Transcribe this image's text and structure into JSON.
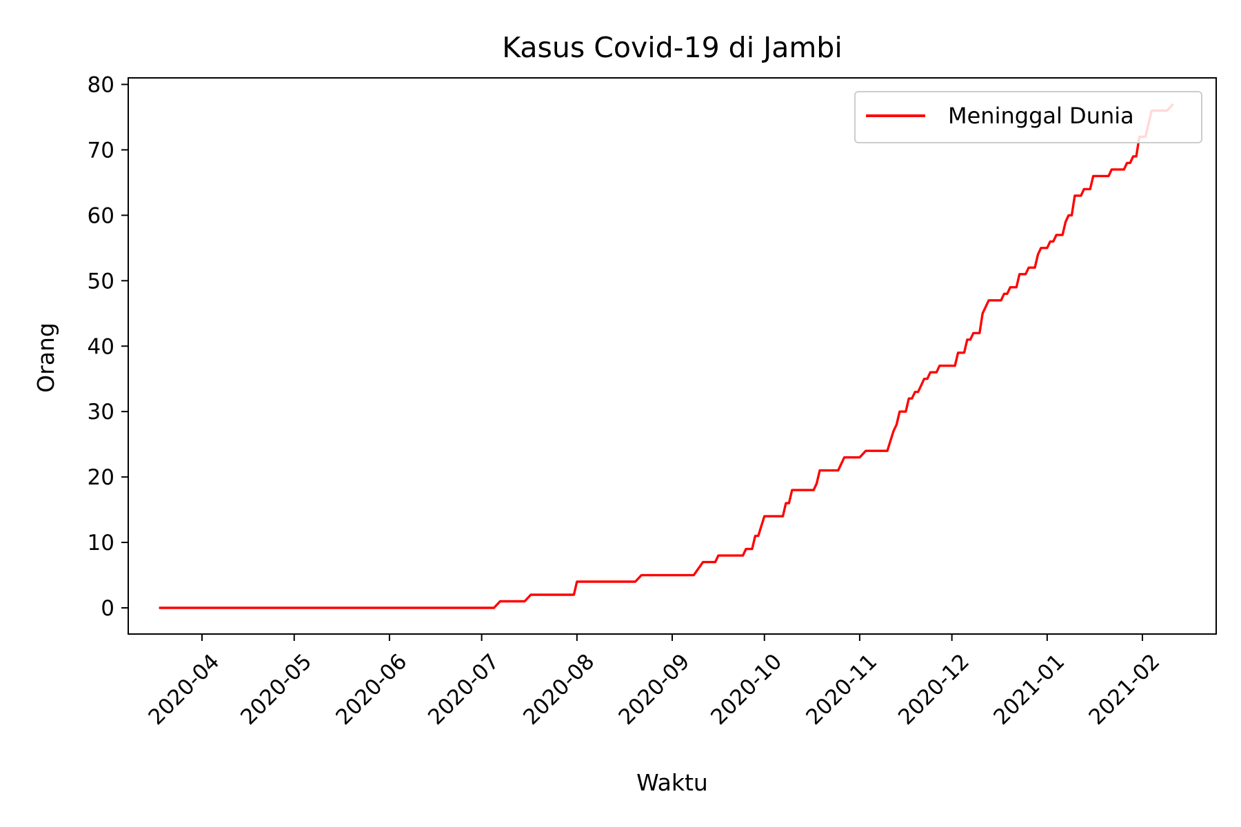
{
  "chart_data": {
    "type": "line",
    "title": "Kasus Covid-19 di Jambi",
    "xlabel": "Waktu",
    "ylabel": "Orang",
    "x_ticks": [
      "2020-04",
      "2020-05",
      "2020-06",
      "2020-07",
      "2020-08",
      "2020-09",
      "2020-10",
      "2020-11",
      "2020-12",
      "2021-01",
      "2021-02"
    ],
    "y_ticks": [
      "0",
      "10",
      "20",
      "30",
      "40",
      "50",
      "60",
      "70",
      "80"
    ],
    "xlim": [
      "2020-03-08",
      "2021-02-25"
    ],
    "ylim": [
      -4,
      81
    ],
    "grid": false,
    "legend_position": "top-right",
    "series": [
      {
        "name": "Meninggal Dunia",
        "color": "#ff0000",
        "points": [
          [
            "2020-03-18",
            0
          ],
          [
            "2020-07-05",
            0
          ],
          [
            "2020-07-07",
            1
          ],
          [
            "2020-07-15",
            1
          ],
          [
            "2020-07-17",
            2
          ],
          [
            "2020-07-31",
            2
          ],
          [
            "2020-08-01",
            4
          ],
          [
            "2020-08-20",
            4
          ],
          [
            "2020-08-22",
            5
          ],
          [
            "2020-09-08",
            5
          ],
          [
            "2020-09-11",
            7
          ],
          [
            "2020-09-15",
            7
          ],
          [
            "2020-09-16",
            8
          ],
          [
            "2020-09-24",
            8
          ],
          [
            "2020-09-25",
            9
          ],
          [
            "2020-09-27",
            9
          ],
          [
            "2020-09-28",
            11
          ],
          [
            "2020-09-29",
            11
          ],
          [
            "2020-10-01",
            14
          ],
          [
            "2020-10-07",
            14
          ],
          [
            "2020-10-08",
            16
          ],
          [
            "2020-10-09",
            16
          ],
          [
            "2020-10-10",
            18
          ],
          [
            "2020-10-17",
            18
          ],
          [
            "2020-10-18",
            19
          ],
          [
            "2020-10-19",
            21
          ],
          [
            "2020-10-25",
            21
          ],
          [
            "2020-10-27",
            23
          ],
          [
            "2020-11-01",
            23
          ],
          [
            "2020-11-03",
            24
          ],
          [
            "2020-11-10",
            24
          ],
          [
            "2020-11-12",
            27
          ],
          [
            "2020-11-13",
            28
          ],
          [
            "2020-11-14",
            30
          ],
          [
            "2020-11-16",
            30
          ],
          [
            "2020-11-17",
            32
          ],
          [
            "2020-11-18",
            32
          ],
          [
            "2020-11-19",
            33
          ],
          [
            "2020-11-20",
            33
          ],
          [
            "2020-11-21",
            34
          ],
          [
            "2020-11-22",
            35
          ],
          [
            "2020-11-23",
            35
          ],
          [
            "2020-11-24",
            36
          ],
          [
            "2020-11-26",
            36
          ],
          [
            "2020-11-27",
            37
          ],
          [
            "2020-12-02",
            37
          ],
          [
            "2020-12-03",
            39
          ],
          [
            "2020-12-05",
            39
          ],
          [
            "2020-12-06",
            41
          ],
          [
            "2020-12-07",
            41
          ],
          [
            "2020-12-08",
            42
          ],
          [
            "2020-12-10",
            42
          ],
          [
            "2020-12-11",
            45
          ],
          [
            "2020-12-13",
            47
          ],
          [
            "2020-12-17",
            47
          ],
          [
            "2020-12-18",
            48
          ],
          [
            "2020-12-19",
            48
          ],
          [
            "2020-12-20",
            49
          ],
          [
            "2020-12-22",
            49
          ],
          [
            "2020-12-23",
            51
          ],
          [
            "2020-12-25",
            51
          ],
          [
            "2020-12-26",
            52
          ],
          [
            "2020-12-28",
            52
          ],
          [
            "2020-12-29",
            54
          ],
          [
            "2020-12-30",
            55
          ],
          [
            "2021-01-01",
            55
          ],
          [
            "2021-01-02",
            56
          ],
          [
            "2021-01-03",
            56
          ],
          [
            "2021-01-04",
            57
          ],
          [
            "2021-01-06",
            57
          ],
          [
            "2021-01-07",
            59
          ],
          [
            "2021-01-08",
            60
          ],
          [
            "2021-01-09",
            60
          ],
          [
            "2021-01-10",
            63
          ],
          [
            "2021-01-12",
            63
          ],
          [
            "2021-01-13",
            64
          ],
          [
            "2021-01-15",
            64
          ],
          [
            "2021-01-16",
            66
          ],
          [
            "2021-01-21",
            66
          ],
          [
            "2021-01-22",
            67
          ],
          [
            "2021-01-26",
            67
          ],
          [
            "2021-01-27",
            68
          ],
          [
            "2021-01-28",
            68
          ],
          [
            "2021-01-29",
            69
          ],
          [
            "2021-01-30",
            69
          ],
          [
            "2021-01-31",
            72
          ],
          [
            "2021-02-02",
            72
          ],
          [
            "2021-02-03",
            74
          ],
          [
            "2021-02-04",
            76
          ],
          [
            "2021-02-09",
            76
          ],
          [
            "2021-02-11",
            77
          ]
        ]
      }
    ]
  }
}
